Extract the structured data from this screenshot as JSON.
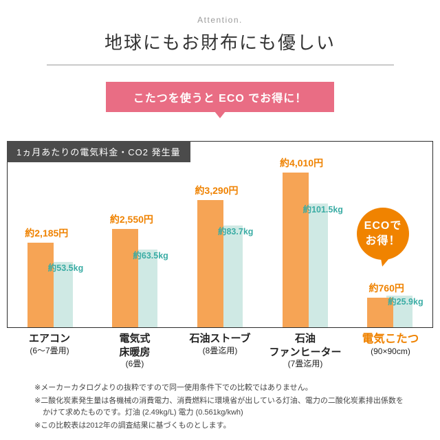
{
  "page": {
    "attention": "Attention.",
    "title": "地球にもお財布にも優しい",
    "banner": "こたつを使うと ECO でお得に！"
  },
  "chart": {
    "header": "1ヵ月あたりの電気料金・CO2 発生量"
  },
  "eco_badge": {
    "line1": "ECOで",
    "line2": "お得！"
  },
  "chart_data": {
    "type": "bar",
    "title": "1ヵ月あたりの電気料金・CO2 発生量",
    "categories": [
      [
        "エアコン",
        "(6～7畳用)"
      ],
      [
        "電気式",
        "床暖房",
        "(6畳)"
      ],
      [
        "石油ストーブ",
        "(8畳迄用)"
      ],
      [
        "石油",
        "ファンヒーター",
        "(7畳迄用)"
      ],
      [
        "電気こたつ",
        "(90×90cm)"
      ]
    ],
    "series": [
      {
        "name": "電気料金(円/月)",
        "unit": "円",
        "color": "#f6a455",
        "label_color": "#ef8200",
        "values": [
          2185,
          2550,
          3290,
          4010,
          760
        ],
        "labels": [
          "約2,185円",
          "約2,550円",
          "約3,290円",
          "約4,010円",
          "約760円"
        ]
      },
      {
        "name": "CO2発生量(kg/月)",
        "unit": "kg",
        "color": "#cfe9e4",
        "label_color": "#3aaca4",
        "values": [
          53.5,
          63.5,
          83.7,
          101.5,
          25.9
        ],
        "labels": [
          "約53.5kg",
          "約63.5kg",
          "約83.7kg",
          "約101.5kg",
          "約25.9kg"
        ]
      }
    ],
    "highlight_index": 4,
    "ylim_price": [
      0,
      4010
    ],
    "ylim_co2": [
      0,
      101.5
    ],
    "grid": false,
    "legend": "none"
  },
  "footnotes": [
    "※メーカーカタログよりの抜粋ですので同一使用条件下での比較ではありません。",
    "※二酸化炭素発生量は各機械の消費電力、消費燃料に環境省が出している灯油、電力の二酸化炭素排出係数をかけて求めたものです。灯油 (2.49kg/L) 電力 (0.561kg/kwh)",
    "※この比較表は2012年の調査結果に基づくものとします。"
  ],
  "colors": {
    "price_bar": "#f6a455",
    "price_text": "#ef8200",
    "co2_bar": "#cfe9e4",
    "co2_text": "#3aaca4",
    "banner_pink": "#e96d84",
    "badge_orange": "#f08300",
    "header_dark": "#4b4b4b"
  }
}
